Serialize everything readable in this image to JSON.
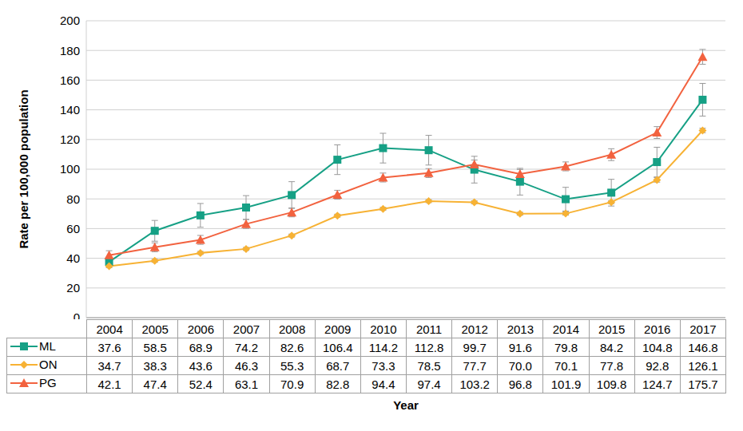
{
  "chart_data": {
    "type": "line",
    "x_label": "Year",
    "y_label": "Rate per 100,000 population",
    "categories": [
      "2004",
      "2005",
      "2006",
      "2007",
      "2008",
      "2009",
      "2010",
      "2011",
      "2012",
      "2013",
      "2014",
      "2015",
      "2016",
      "2017"
    ],
    "series": [
      {
        "name": "ML",
        "color": "#16a085",
        "marker": "square",
        "values": [
          37.6,
          58.5,
          68.9,
          74.2,
          82.6,
          106.4,
          114.2,
          112.8,
          99.7,
          91.6,
          79.8,
          84.2,
          104.8,
          146.8
        ],
        "value_labels": [
          "37.6",
          "58.5",
          "68.9",
          "74.2",
          "82.6",
          "106.4",
          "114.2",
          "112.8",
          "99.7",
          "91.6",
          "79.8",
          "84.2",
          "104.8",
          "146.8"
        ],
        "errors": [
          3,
          7,
          8,
          8,
          9,
          10,
          10,
          10,
          9,
          9,
          8,
          9,
          10,
          11
        ]
      },
      {
        "name": "ON",
        "color": "#f7b234",
        "marker": "diamond",
        "values": [
          34.7,
          38.3,
          43.6,
          46.3,
          55.3,
          68.7,
          73.3,
          78.5,
          77.7,
          70.0,
          70.1,
          77.8,
          92.8,
          126.1
        ],
        "value_labels": [
          "34.7",
          "38.3",
          "43.6",
          "46.3",
          "55.3",
          "68.7",
          "73.3",
          "78.5",
          "77.7",
          "70.0",
          "70.1",
          "77.8",
          "92.8",
          "126.1"
        ],
        "errors": [
          1,
          1,
          1,
          1,
          1,
          1,
          1,
          1,
          1,
          1,
          1,
          1,
          1.5,
          1.5
        ]
      },
      {
        "name": "PG",
        "color": "#f2623f",
        "marker": "triangle",
        "values": [
          42.1,
          47.4,
          52.4,
          63.1,
          70.9,
          82.8,
          94.4,
          97.4,
          103.2,
          96.8,
          101.9,
          109.8,
          124.7,
          175.7
        ],
        "value_labels": [
          "42.1",
          "47.4",
          "52.4",
          "63.1",
          "70.9",
          "82.8",
          "94.4",
          "97.4",
          "103.2",
          "96.8",
          "101.9",
          "109.8",
          "124.7",
          "175.7"
        ],
        "errors": [
          3,
          3,
          3,
          3,
          3,
          3,
          3,
          3,
          3,
          3,
          3,
          4,
          4,
          5
        ]
      }
    ],
    "ylim": [
      0,
      200
    ],
    "yticks": [
      0,
      20,
      40,
      60,
      80,
      100,
      120,
      140,
      160,
      180,
      200
    ],
    "grid": true
  }
}
